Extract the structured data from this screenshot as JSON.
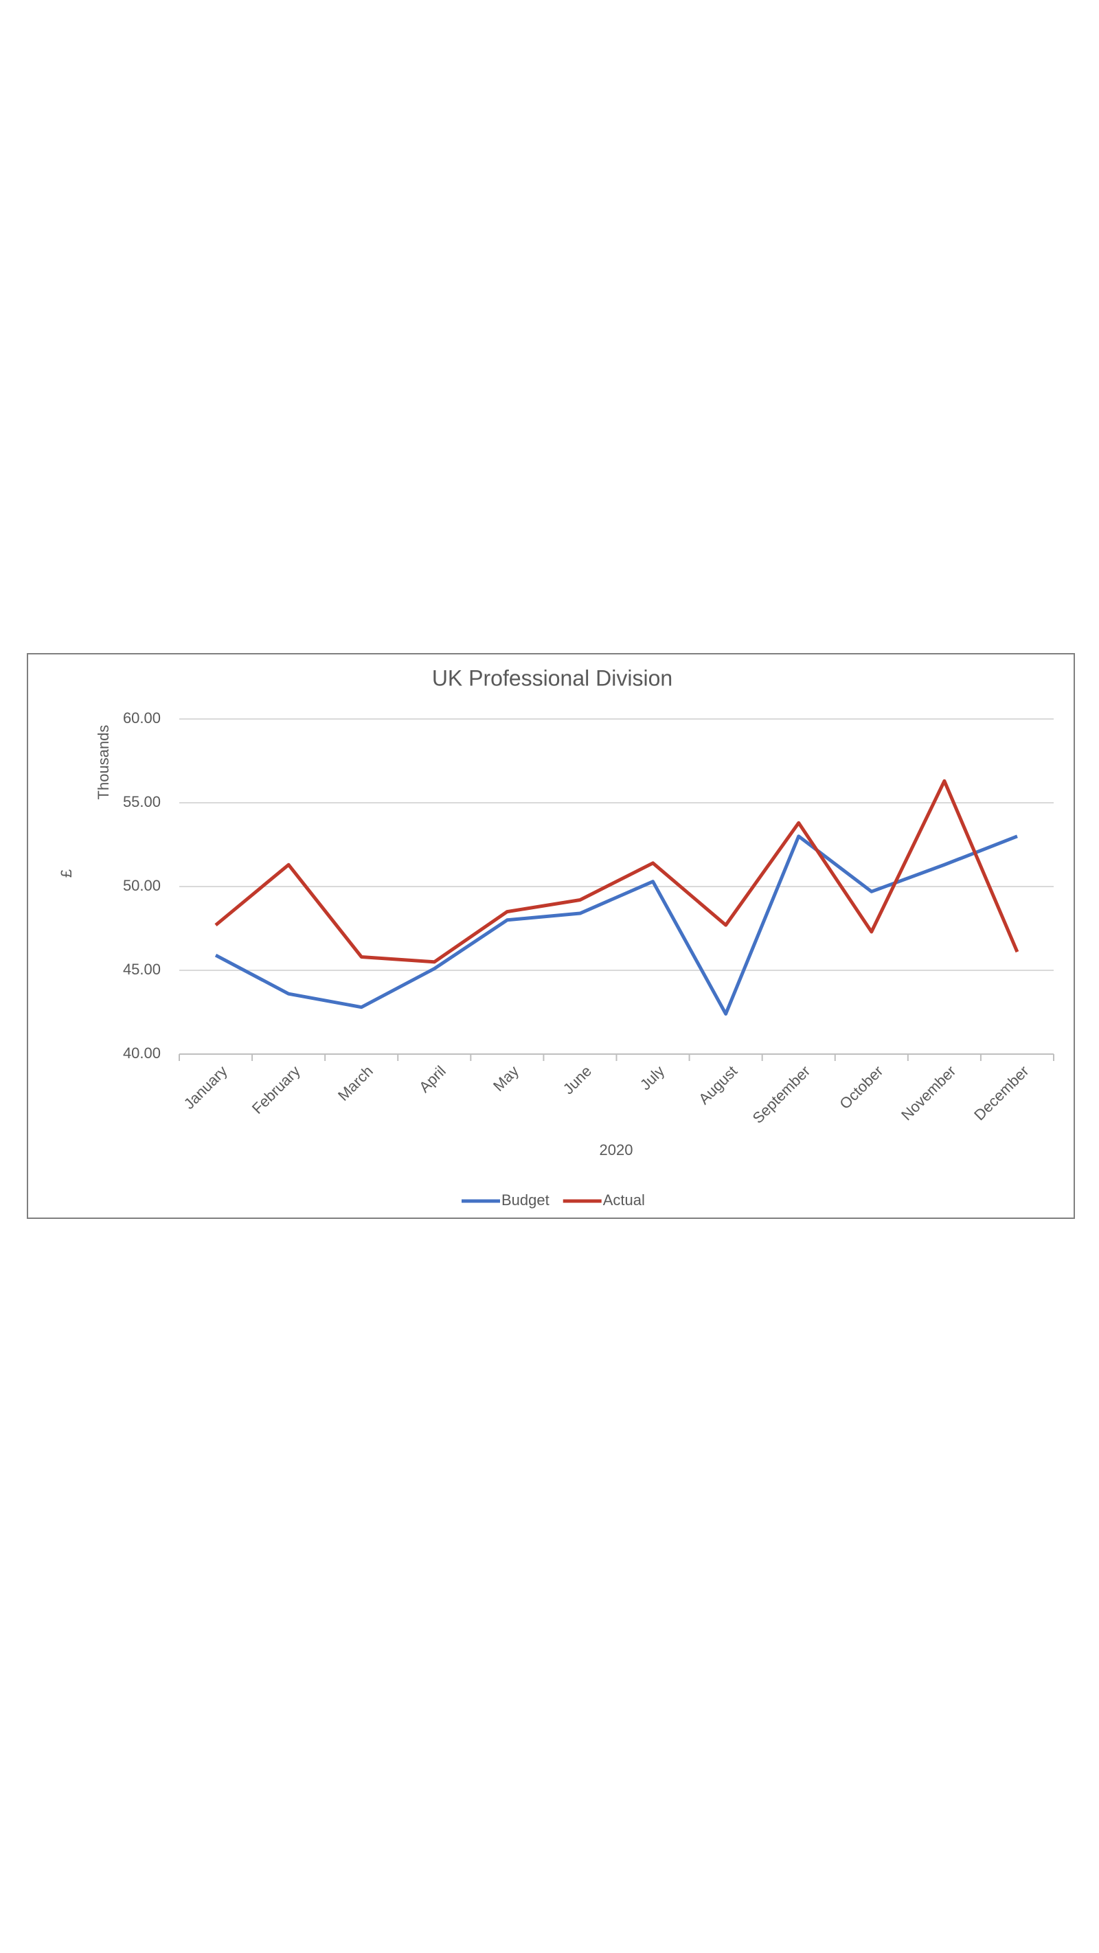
{
  "chart_data": {
    "type": "line",
    "title": "UK Professional Division",
    "y_label": "£",
    "y_units_label": "Thousands",
    "x_label": "2020",
    "categories": [
      "January",
      "February",
      "March",
      "April",
      "May",
      "June",
      "July",
      "August",
      "September",
      "October",
      "November",
      "December"
    ],
    "series": [
      {
        "name": "Budget",
        "color": "#4472c4",
        "values": [
          45.9,
          43.6,
          42.8,
          45.1,
          48.0,
          48.4,
          50.3,
          42.4,
          53.0,
          49.7,
          51.3,
          53.0
        ]
      },
      {
        "name": "Actual",
        "color": "#c0392b",
        "values": [
          47.7,
          51.3,
          45.8,
          45.5,
          48.5,
          49.2,
          51.4,
          47.7,
          53.8,
          47.3,
          56.3,
          46.1
        ]
      }
    ],
    "ylim": [
      40,
      60
    ],
    "yticks": [
      {
        "value": 40,
        "label": "40.00"
      },
      {
        "value": 45,
        "label": "45.00"
      },
      {
        "value": 50,
        "label": "50.00"
      },
      {
        "value": 55,
        "label": "55.00"
      },
      {
        "value": 60,
        "label": "60.00"
      }
    ],
    "grid": true,
    "legend": "bottom"
  }
}
